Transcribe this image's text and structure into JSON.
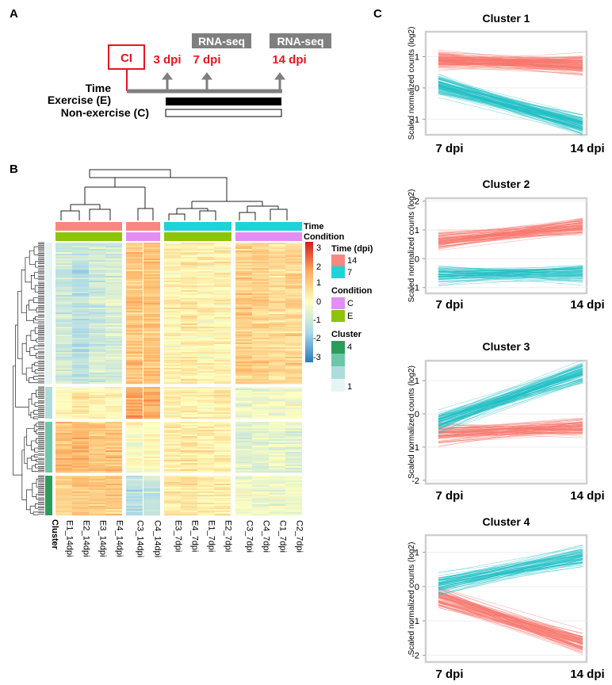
{
  "panels": {
    "a": {
      "letter": "A",
      "ci_label": "CI",
      "dpi_3": "3 dpi",
      "dpi_7": "7 dpi",
      "dpi_14": "14 dpi",
      "rnaseq_1": "RNA-seq",
      "rnaseq_2": "RNA-seq",
      "row_time": "Time",
      "row_exercise": "Exercise (E)",
      "row_nonexercise": "Non-exercise (C)",
      "colors": {
        "red": "#e8141c",
        "gray": "#7f7f7f"
      }
    },
    "b": {
      "letter": "B",
      "row_label_time": "Time",
      "row_label_condition": "Condition",
      "cluster_label": "Cluster",
      "columns": [
        "E1_14dpi",
        "E2_14dpi",
        "E3_14dpi",
        "E4_14dpi",
        "C3_14dpi",
        "C4_14dpi",
        "E3_7dpi",
        "E4_7dpi",
        "E1_7dpi",
        "E2_7dpi",
        "C3_7dpi",
        "C4_7dpi",
        "C1_7dpi",
        "C2_7dpi"
      ],
      "colorbar": {
        "ticks": [
          "3",
          "2",
          "1",
          "0",
          "-1",
          "-2",
          "-3"
        ]
      },
      "legend": {
        "time_title": "Time (dpi)",
        "time_items": [
          "14",
          "7"
        ],
        "condition_title": "Condition",
        "condition_items": [
          "C",
          "E"
        ],
        "cluster_title": "Cluster",
        "cluster_top": "4",
        "cluster_bottom": "1"
      },
      "colors": {
        "time14": "#f8877f",
        "time7": "#1ed3d8",
        "condC": "#e38ef4",
        "condE": "#8cc40a",
        "cl4": "#2a9d5b",
        "cl3": "#6cc7a9",
        "cl2": "#aedcdb",
        "cl1": "#e6f4f4"
      }
    },
    "c": {
      "letter": "C",
      "ylabel": "Scaled normalized counts (log2)",
      "x_left": "7 dpi",
      "x_right": "14 dpi",
      "colors": {
        "red": "#f8766d",
        "teal": "#1fbfc4"
      }
    }
  },
  "chart_data": [
    {
      "type": "line",
      "title": "Cluster 1",
      "ylim": [
        -1.5,
        1.8
      ],
      "yticks": [
        "1",
        "0",
        "-1"
      ],
      "ytick_values": [
        1,
        0,
        -1
      ],
      "series": [
        {
          "name": "red",
          "start": 0.9,
          "end": 0.75,
          "n": 110
        },
        {
          "name": "teal",
          "start": 0.1,
          "end": -1.2,
          "n": 100
        }
      ]
    },
    {
      "type": "line",
      "title": "Cluster 2",
      "ylim": [
        -1.2,
        2.1
      ],
      "yticks": [
        "2",
        "1",
        "0",
        "-1"
      ],
      "ytick_values": [
        2,
        1,
        0,
        -1
      ],
      "series": [
        {
          "name": "red",
          "start": 0.6,
          "end": 1.15,
          "n": 80
        },
        {
          "name": "teal",
          "start": -0.55,
          "end": -0.5,
          "n": 70
        }
      ]
    },
    {
      "type": "line",
      "title": "Cluster 3",
      "ylim": [
        -2.1,
        1.6
      ],
      "yticks": [
        "1",
        "0",
        "-1",
        "-2"
      ],
      "ytick_values": [
        1,
        0,
        -1,
        -2
      ],
      "series": [
        {
          "name": "red",
          "start": -0.6,
          "end": -0.4,
          "n": 80
        },
        {
          "name": "teal",
          "start": -0.25,
          "end": 1.25,
          "n": 90
        }
      ]
    },
    {
      "type": "line",
      "title": "Cluster 4",
      "ylim": [
        -2.2,
        1.5
      ],
      "yticks": [
        "1",
        "0",
        "-1",
        "-2"
      ],
      "ytick_values": [
        1,
        0,
        -1,
        -2
      ],
      "series": [
        {
          "name": "red",
          "start": -0.3,
          "end": -1.6,
          "n": 90
        },
        {
          "name": "teal",
          "start": 0.05,
          "end": 0.9,
          "n": 70
        }
      ]
    }
  ]
}
